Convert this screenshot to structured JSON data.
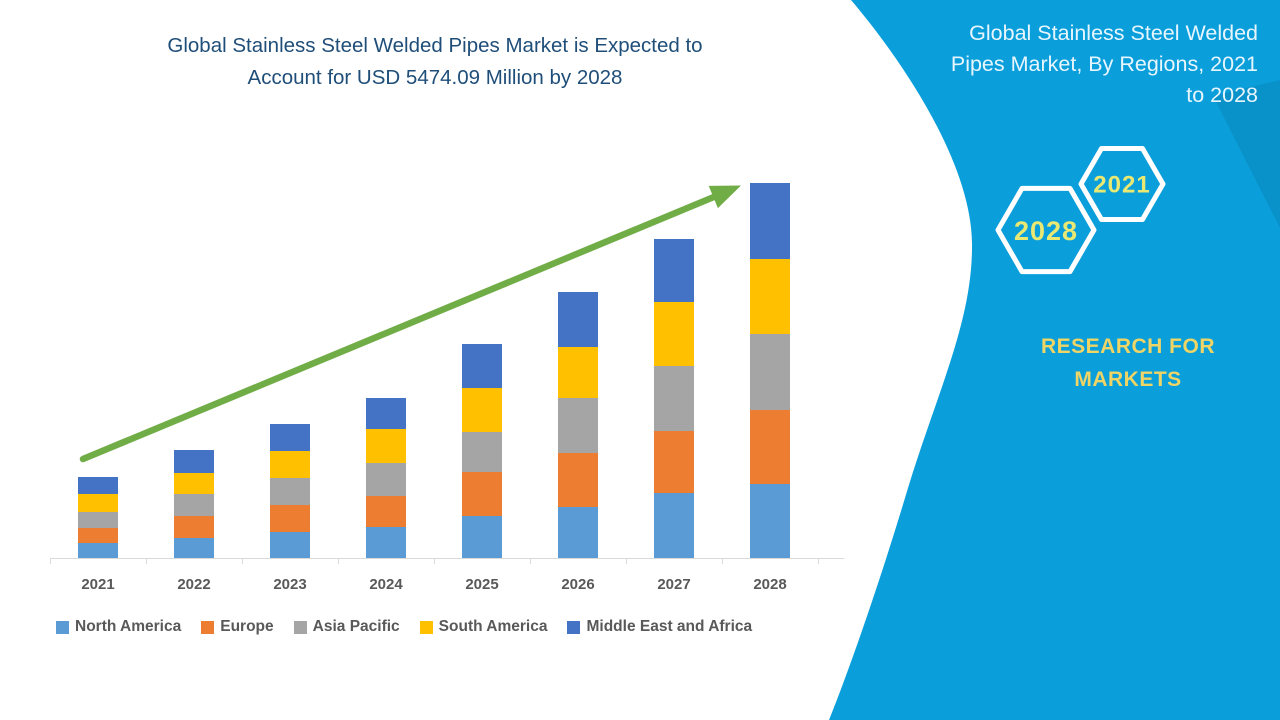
{
  "main_title": {
    "lines": [
      "Global Stainless Steel Welded Pipes Market is Expected to",
      "Account for USD 5474.09 Million by 2028"
    ],
    "color": "#1F4E79"
  },
  "right_panel": {
    "background_color": "#0A9FDB",
    "accent_wedge_color": "#0991C9",
    "title_lines": [
      "Global Stainless Steel Welded",
      "Pipes Market, By Regions, 2021",
      "to 2028"
    ],
    "title_color": "#E7F6FE",
    "hexagon_small_year": "2021",
    "hexagon_large_year": "2028",
    "hexagon_outline_color": "#FFFFFF",
    "hexagon_year_color": "#E9E873",
    "brand_lines": [
      "RESEARCH FOR",
      "MARKETS"
    ],
    "brand_color": "#EFD466"
  },
  "chart_data": {
    "type": "bar",
    "stacked": true,
    "unit": "USD Million",
    "stated_total_2028_usd_million": 5474.09,
    "categories": [
      "2021",
      "2022",
      "2023",
      "2024",
      "2025",
      "2026",
      "2027",
      "2028"
    ],
    "series": [
      {
        "name": "North America",
        "color": "#5B9BD5",
        "values": [
          219,
          292,
          380,
          453,
          613,
          744,
          949,
          1080
        ]
      },
      {
        "name": "Europe",
        "color": "#ED7D31",
        "values": [
          219,
          321,
          394,
          453,
          642,
          788,
          905,
          1080
        ]
      },
      {
        "name": "Asia Pacific",
        "color": "#A5A5A5",
        "values": [
          234,
          321,
          394,
          482,
          584,
          803,
          949,
          1109
        ]
      },
      {
        "name": "South America",
        "color": "#FFC000",
        "values": [
          263,
          307,
          394,
          496,
          642,
          744,
          934,
          1095
        ]
      },
      {
        "name": "Middle East and Africa",
        "color": "#4472C4",
        "values": [
          248,
          336,
          394,
          453,
          642,
          803,
          920,
          1110
        ]
      }
    ],
    "totals_estimated": [
      1183,
      1577,
      1956,
      2337,
      3123,
      3882,
      4657,
      5474
    ],
    "ylim": [
      0,
      5600
    ],
    "y_axis_visible": false,
    "gridlines": false,
    "legend_position": "bottom",
    "axis_line_color": "#D9D9D9",
    "tick_label_color": "#595959",
    "trend_arrow_color": "#70AD47"
  }
}
